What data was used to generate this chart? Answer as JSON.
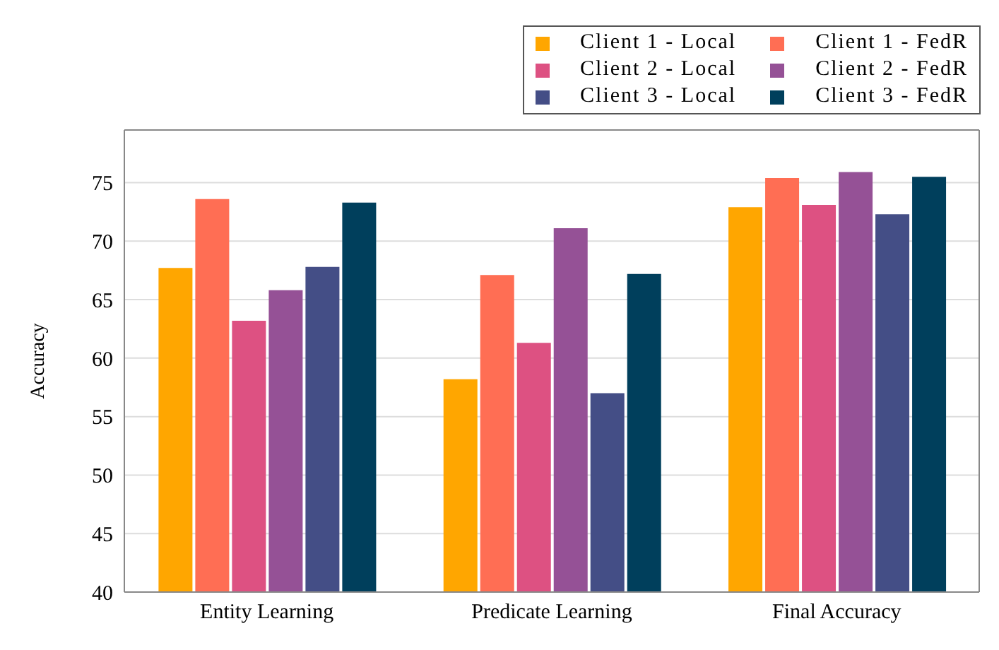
{
  "chart_data": {
    "type": "bar",
    "ylabel": "Accuracy",
    "categories": [
      "Entity Learning",
      "Predicate Learning",
      "Final Accuracy"
    ],
    "series": [
      {
        "name": "Client 1 - Local",
        "color": "#ffa600",
        "values": [
          67.7,
          58.2,
          72.9
        ]
      },
      {
        "name": "Client 1 - FedR",
        "color": "#ff6e54",
        "values": [
          73.6,
          67.1,
          75.4
        ]
      },
      {
        "name": "Client 2 - Local",
        "color": "#dd5182",
        "values": [
          63.2,
          61.3,
          73.1
        ]
      },
      {
        "name": "Client 2 - FedR",
        "color": "#955196",
        "values": [
          65.8,
          71.1,
          75.9
        ]
      },
      {
        "name": "Client 3 - Local",
        "color": "#444e86",
        "values": [
          67.8,
          57.0,
          72.3
        ]
      },
      {
        "name": "Client 3 - FedR",
        "color": "#003f5c",
        "values": [
          73.3,
          67.2,
          75.5
        ]
      }
    ],
    "ylim": [
      40,
      79.5
    ],
    "yticks": [
      40,
      45,
      50,
      55,
      60,
      65,
      70,
      75
    ],
    "grid": "y",
    "legend": "top right"
  }
}
